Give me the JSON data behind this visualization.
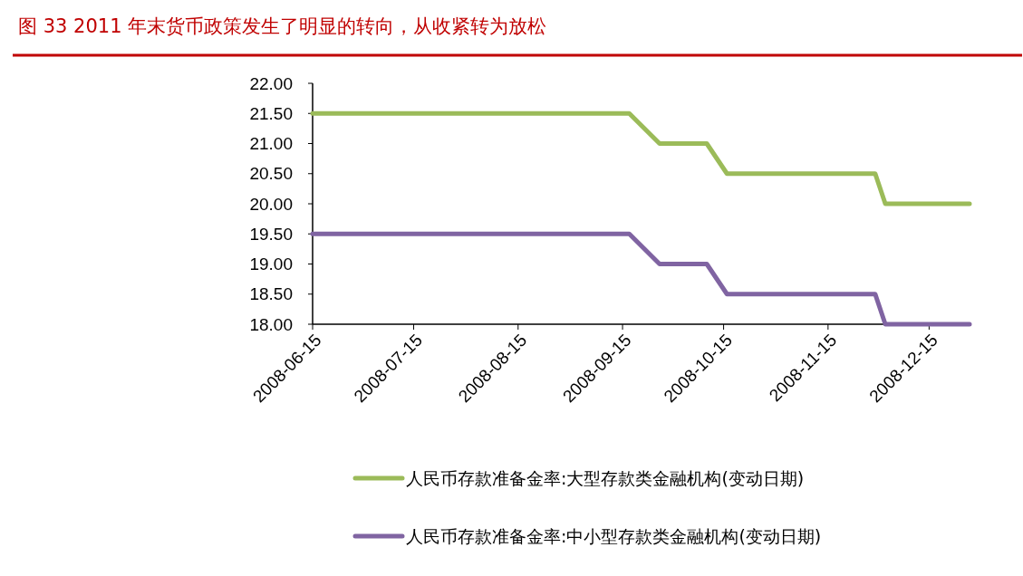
{
  "chart_data": {
    "type": "line",
    "title": "图 33   2011 年末货币政策发生了明显的转向，从收紧转为放松",
    "x": [
      "2008-06-15",
      "2008-09-17",
      "2008-09-26",
      "2008-10-10",
      "2008-10-16",
      "2008-11-29",
      "2008-12-02",
      "2008-12-27"
    ],
    "series": [
      {
        "name": "人民币存款准备金率:大型存款类金融机构(变动日期)",
        "color": "#9bbb59",
        "values": [
          21.5,
          21.5,
          21.0,
          21.0,
          20.5,
          20.5,
          20.0,
          20.0
        ]
      },
      {
        "name": "人民币存款准备金率:中小型存款类金融机构(变动日期)",
        "color": "#8064a2",
        "values": [
          19.5,
          19.5,
          19.0,
          19.0,
          18.5,
          18.5,
          18.0,
          18.0
        ]
      }
    ],
    "xlim": [
      "2008-06-15",
      "2008-12-27"
    ],
    "xticks": [
      {
        "value": "2008-06-15",
        "label": "2008-06-15"
      },
      {
        "value": "2008-07-15",
        "label": "2008-07-15"
      },
      {
        "value": "2008-08-15",
        "label": "2008-08-15"
      },
      {
        "value": "2008-09-15",
        "label": "2008-09-15"
      },
      {
        "value": "2008-10-15",
        "label": "2008-10-15"
      },
      {
        "value": "2008-11-15",
        "label": "2008-11-15"
      },
      {
        "value": "2008-12-15",
        "label": "2008-12-15"
      }
    ],
    "ylim": [
      18,
      22
    ],
    "yticks": [
      {
        "value": 18,
        "label": "18.00"
      },
      {
        "value": 18.5,
        "label": "18.50"
      },
      {
        "value": 19,
        "label": "19.00"
      },
      {
        "value": 19.5,
        "label": "19.50"
      },
      {
        "value": 20,
        "label": "20.00"
      },
      {
        "value": 20.5,
        "label": "20.50"
      },
      {
        "value": 21,
        "label": "21.00"
      },
      {
        "value": 21.5,
        "label": "21.50"
      },
      {
        "value": 22,
        "label": "22.00"
      }
    ],
    "grid": false,
    "legend": "bottom",
    "marker": "none",
    "line_style": "solid"
  }
}
